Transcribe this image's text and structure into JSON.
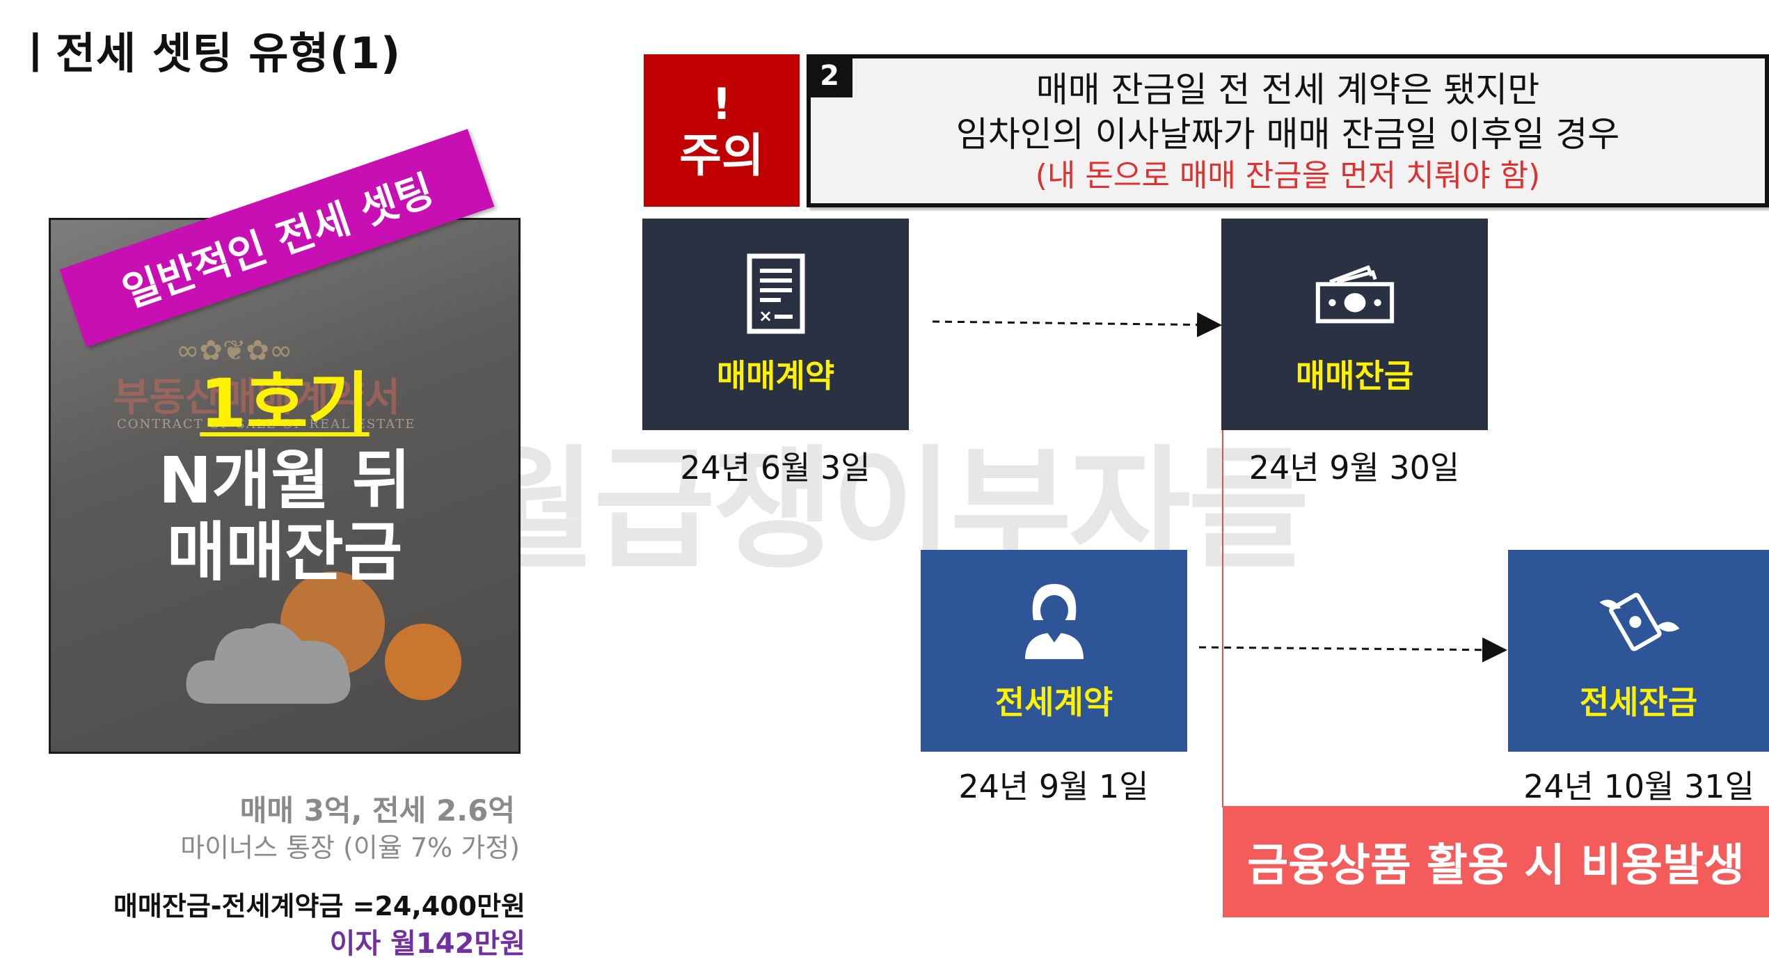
{
  "title": "ㅣ전세 셋팅 유형(1)",
  "left_panel": {
    "tag_label": "일반적인 전세 셋팅",
    "photo_doc_title": "부동산매매계약서",
    "photo_doc_subtitle": "CONTRACT OF SALE OF REAL ESTATE",
    "overlay_line1": "1호기",
    "overlay_line2": "N개월 뒤",
    "overlay_line3": "매매잔금"
  },
  "summary": {
    "price_line": "매매 3억, 전세 2.6억",
    "loan_line": "마이너스 통장 (이율 7% 가정)",
    "balance_line": "매매잔금-전세계약금 =24,400만원",
    "interest_line": "이자 월142만원"
  },
  "warning": {
    "exclaim": "!",
    "label": "주의"
  },
  "notice": {
    "number": "2",
    "line1": "매매 잔금일 전 전세 계약은 됐지만",
    "line2": "임차인의 이사날짜가 매매 잔금일 이후일 경우",
    "line3": "(내 돈으로 매매 잔금을 먼저 치뤄야 함)"
  },
  "steps": {
    "sale_contract": {
      "label": "매매계약",
      "date": "24년 6월 3일",
      "icon": "contract-icon"
    },
    "sale_balance": {
      "label": "매매잔금",
      "date": "24년 9월 30일",
      "icon": "money-icon"
    },
    "jeonse_contract": {
      "label": "전세계약",
      "date": "24년 9월 1일",
      "icon": "tenant-icon"
    },
    "jeonse_balance": {
      "label": "전세잔금",
      "date": "24년 10월 31일",
      "icon": "flying-money-icon"
    }
  },
  "cost_banner": "금융상품 활용 시 비용발생",
  "watermark": "월급쟁이부자들",
  "colors": {
    "warning_red": "#c00000",
    "tag_magenta": "#c80fb3",
    "dark_box": "#2a3142",
    "blue_box": "#2e5597",
    "label_yellow": "#fff200",
    "cost_red": "#f45c5c",
    "interest_purple": "#7030a0"
  }
}
